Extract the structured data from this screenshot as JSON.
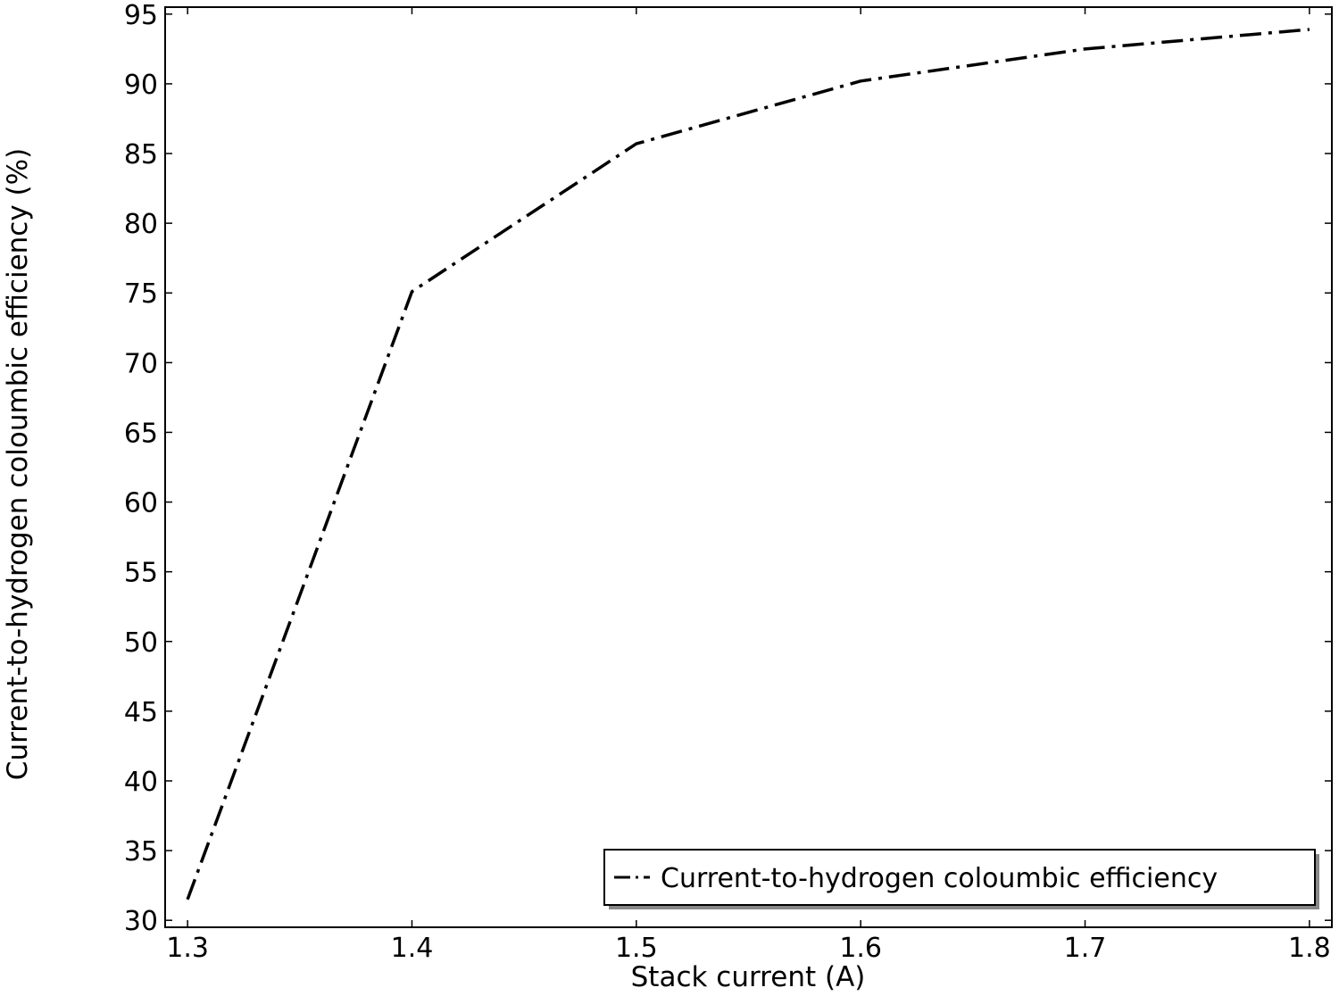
{
  "chart_data": {
    "type": "line",
    "xlabel": "Stack current (A)",
    "ylabel": "Current-to-hydrogen coloumbic efficiency (%)",
    "xlim": [
      1.29,
      1.81
    ],
    "ylim": [
      29.5,
      95.5
    ],
    "xticks": [
      "1.3",
      "1.4",
      "1.5",
      "1.6",
      "1.7",
      "1.8"
    ],
    "yticks": [
      "30",
      "35",
      "40",
      "45",
      "50",
      "55",
      "60",
      "65",
      "70",
      "75",
      "80",
      "85",
      "90",
      "95"
    ],
    "grid": false,
    "legend_position": "bottom-right",
    "series": [
      {
        "name": "Current-to-hydrogen coloumbic efficiency",
        "color": "#000000",
        "line_style": "dash-dot",
        "x": [
          1.3,
          1.4,
          1.5,
          1.6,
          1.7,
          1.8
        ],
        "y": [
          31.5,
          75.1,
          85.7,
          90.2,
          92.5,
          93.9
        ]
      }
    ]
  }
}
